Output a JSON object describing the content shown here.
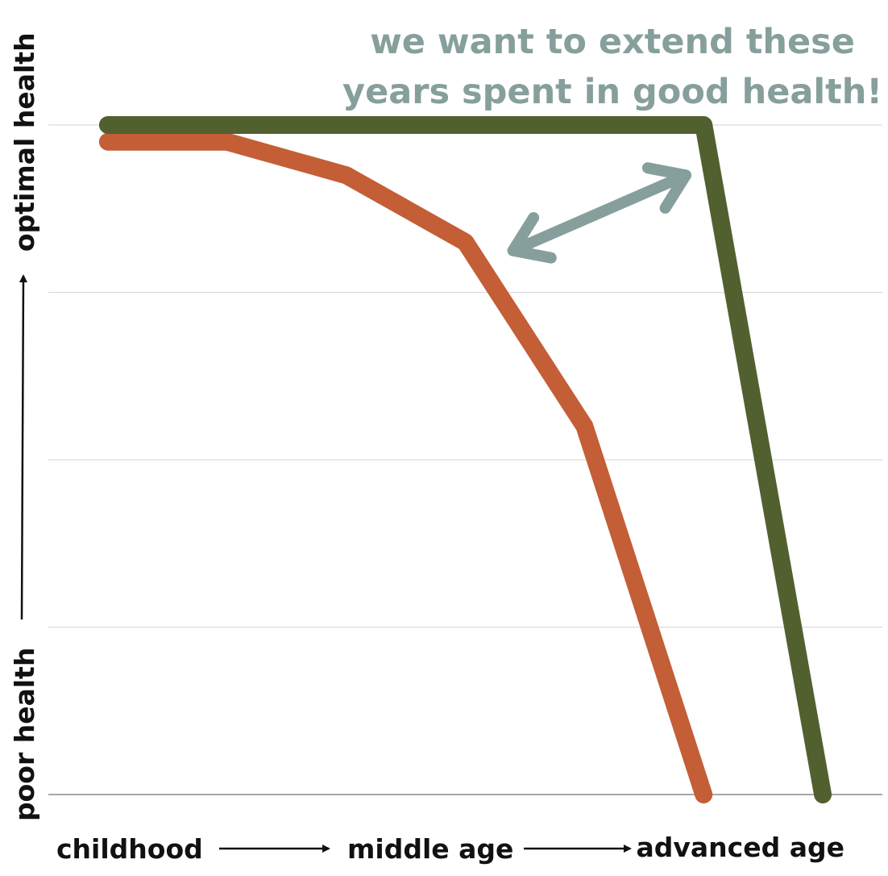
{
  "chart_data": {
    "type": "line",
    "title": "",
    "x": [
      0,
      1,
      2,
      3,
      4,
      5,
      6
    ],
    "xlim": [
      -0.5,
      6.5
    ],
    "ylim": [
      0,
      4
    ],
    "gridlines_y": [
      0,
      1,
      2,
      3,
      4
    ],
    "grid": true,
    "legend": "none",
    "series": [
      {
        "color": "#c45e36",
        "values": [
          3.9,
          3.9,
          3.7,
          3.3,
          2.2,
          0.0,
          null
        ]
      },
      {
        "color": "#526030",
        "values": [
          4.0,
          4.0,
          4.0,
          4.0,
          4.0,
          4.0,
          0.0
        ]
      }
    ],
    "annotation": {
      "lines": [
        "we want to extend these",
        "years spent in good health!"
      ],
      "color": "#869f9c",
      "arrow": {
        "from": {
          "x": 3.4,
          "y": 3.25
        },
        "to": {
          "x": 4.85,
          "y": 3.7
        }
      }
    },
    "y_axis_words": {
      "low": "poor health",
      "high": "optimal health"
    },
    "x_axis_words": [
      "childhood",
      "middle age",
      "advanced age"
    ]
  }
}
